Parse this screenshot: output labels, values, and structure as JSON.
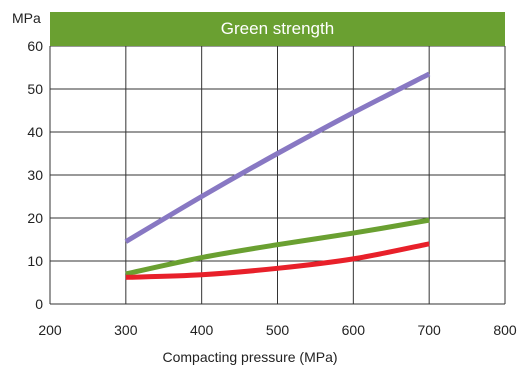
{
  "chart_data": {
    "type": "line",
    "title": "Green strength",
    "title_bg_color": "#6aa031",
    "xlabel": "Compacting pressure (MPa)",
    "ylabel": "MPa",
    "xlim": [
      200,
      800
    ],
    "ylim": [
      0,
      60
    ],
    "x_ticks": [
      200,
      300,
      400,
      500,
      600,
      700,
      800
    ],
    "y_ticks": [
      0,
      10,
      20,
      30,
      40,
      50,
      60
    ],
    "grid": true,
    "series": [
      {
        "color": "#8878c3",
        "x": [
          300,
          400,
          500,
          600,
          700
        ],
        "y": [
          14.5,
          25,
          35,
          44.5,
          53.5
        ]
      },
      {
        "color": "#6aa031",
        "x": [
          300,
          400,
          500,
          600,
          700
        ],
        "y": [
          7,
          10.8,
          13.8,
          16.5,
          19.5
        ]
      },
      {
        "color": "#e8202a",
        "x": [
          300,
          400,
          500,
          600,
          700
        ],
        "y": [
          6.2,
          6.8,
          8.3,
          10.5,
          14
        ]
      }
    ]
  }
}
